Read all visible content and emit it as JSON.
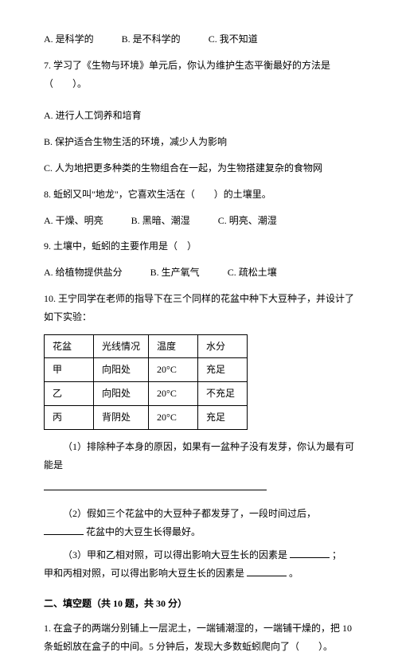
{
  "q_line1_a": "A. 是科学的",
  "q_line1_b": "B. 是不科学的",
  "q_line1_c": "C. 我不知道",
  "q7": "7. 学习了《生物与环境》单元后，你认为维护生态平衡最好的方法是（　　）。",
  "q7a": "A. 进行人工饲养和培育",
  "q7b": "B. 保护适合生物生活的环境，减少人为影响",
  "q7c": "C. 人为地把更多种类的生物组合在一起，为生物搭建复杂的食物网",
  "q8": "8. 蚯蚓又叫\"地龙\"，它喜欢生活在（　　）的土壤里。",
  "q8a": "A. 干燥、明亮",
  "q8b": "B. 黑暗、潮湿",
  "q8c": "C. 明亮、潮湿",
  "q9": "9. 土壤中，蚯蚓的主要作用是（　）",
  "q9a": "A. 给植物提供盐分",
  "q9b": "B. 生产氧气",
  "q9c": "C. 疏松土壤",
  "q10": "10. 王宁同学在老师的指导下在三个同样的花盆中种下大豆种子，并设计了如下实验：",
  "table": {
    "header": [
      "花盆",
      "光线情况",
      "温度",
      "水分"
    ],
    "rows": [
      [
        "甲",
        "向阳处",
        "20°C",
        "充足"
      ],
      [
        "乙",
        "向阳处",
        "20°C",
        "不充足"
      ],
      [
        "丙",
        "背阴处",
        "20°C",
        "充足"
      ]
    ]
  },
  "q10_1": "（1）排除种子本身的原因，如果有一盆种子没有发芽，你认为最有可能是",
  "q10_2a": "（2）假如三个花盆中的大豆种子都发芽了，一段时间过后，",
  "q10_2b": "花盆中的大豆生长得最好。",
  "q10_3a": "（3）甲和乙相对照，可以得出影响大豆生长的因素是",
  "q10_3b": "；　甲和丙相对照，可以得出影响大豆生长的因素是",
  "q10_3c": "。",
  "section2": "二、填空题（共 10 题，共 30 分）",
  "fill1": "1. 在盒子的两端分别铺上一层泥土，一端铺潮湿的，一端铺干燥的，把 10 条蚯蚓放在盒子的中间。5 分钟后，发现大多数蚯蚓爬向了（　　）。"
}
